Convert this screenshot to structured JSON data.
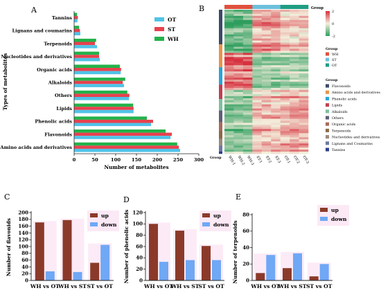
{
  "colors": {
    "OT": "#4fc3e8",
    "ST": "#e8414e",
    "WH": "#22b24a",
    "up": "#8b3a2a",
    "down": "#6fa8f5",
    "hm_low": "#2e9e5e",
    "hm_mid": "#f4eedc",
    "hm_high": "#d62f3d"
  },
  "chart_data": [
    {
      "panel": "A",
      "type": "bar",
      "orientation": "horizontal",
      "categories": [
        "Tannins",
        "Lignans and coumarins",
        "Terpenoids",
        "Nucleotides and derivatives",
        "Organic acids",
        "Alkaloids",
        "Others",
        "Lipids",
        "Phenolic acids",
        "Flavonoids",
        "Amino acids and derivatives"
      ],
      "series": [
        {
          "name": "OT",
          "values": [
            8,
            15,
            55,
            62,
            112,
            120,
            132,
            143,
            185,
            232,
            255
          ]
        },
        {
          "name": "ST",
          "values": [
            9,
            14,
            50,
            60,
            113,
            117,
            133,
            143,
            190,
            235,
            252
          ]
        },
        {
          "name": "WH",
          "values": [
            7,
            12,
            53,
            60,
            110,
            123,
            128,
            142,
            175,
            220,
            248
          ]
        }
      ],
      "xlabel": "Number of metabolites",
      "ylabel": "Types of metabolites",
      "xlim": [
        0,
        300
      ],
      "xticks": [
        0,
        50,
        100,
        150,
        200,
        250,
        300
      ],
      "legend": "right"
    },
    {
      "panel": "B",
      "type": "heatmap",
      "columns": [
        "WH-1",
        "WH-2",
        "WH-3",
        "ST-1",
        "ST-2",
        "ST-3",
        "OT-1",
        "OT-2",
        "OT-3"
      ],
      "group_title": "Group",
      "colorbar_ticks": [
        "2",
        "0",
        "-2"
      ],
      "group_legend": [
        {
          "name": "WH",
          "color": "#e0503d"
        },
        {
          "name": "ST",
          "color": "#6dc0dc"
        },
        {
          "name": "OT",
          "color": "#1e9e83"
        }
      ],
      "class_title": "Group",
      "class_legend": [
        {
          "name": "Flavonoids",
          "color": "#3b4a66"
        },
        {
          "name": "Amino acids and derivatives",
          "color": "#e8944a"
        },
        {
          "name": "Phenolic acids",
          "color": "#27a6d8"
        },
        {
          "name": "Lipids",
          "color": "#c2404e"
        },
        {
          "name": "Alkaloids",
          "color": "#7fbfa0"
        },
        {
          "name": "Others",
          "color": "#5f5f78"
        },
        {
          "name": "Organic acids",
          "color": "#a86a5a"
        },
        {
          "name": "Terpenoids",
          "color": "#8c6a48"
        },
        {
          "name": "Nucleotides and derivatives",
          "color": "#9b8a7a"
        },
        {
          "name": "Lignans and Coumarins",
          "color": "#6e7aa0"
        },
        {
          "name": "Tannins",
          "color": "#2c3e8c"
        }
      ]
    },
    {
      "panel": "C",
      "type": "bar",
      "categories": [
        "WH vs OT",
        "WH vs ST",
        "ST vs OT"
      ],
      "series": [
        {
          "name": "up",
          "values": [
            171,
            178,
            52
          ]
        },
        {
          "name": "down",
          "values": [
            27,
            25,
            105
          ]
        }
      ],
      "ylabel": "Number of flavonids",
      "ylim": [
        0,
        200
      ],
      "yticks": [
        0,
        20,
        40,
        60,
        80,
        100,
        120,
        140,
        160,
        180,
        200
      ],
      "legend": "top-right"
    },
    {
      "panel": "D",
      "type": "bar",
      "categories": [
        "WH vs OT",
        "WH vs ST",
        "ST vs OT"
      ],
      "series": [
        {
          "name": "up",
          "values": [
            100,
            88,
            61
          ]
        },
        {
          "name": "down",
          "values": [
            33,
            36,
            36
          ]
        }
      ],
      "ylabel": "Number of phenolic acids",
      "ylim": [
        0,
        120
      ],
      "yticks": [
        0,
        20,
        40,
        60,
        80,
        100,
        120
      ],
      "legend": "top-right"
    },
    {
      "panel": "E",
      "type": "bar",
      "categories": [
        "WH vs OT",
        "WH vs ST",
        "ST vs OT"
      ],
      "series": [
        {
          "name": "up",
          "values": [
            9,
            15,
            5
          ]
        },
        {
          "name": "down",
          "values": [
            31,
            33,
            20
          ]
        }
      ],
      "ylabel": "Number of terpenoids",
      "ylim": [
        0,
        80
      ],
      "yticks": [
        0,
        20,
        40,
        60,
        80
      ],
      "legend": "top-right"
    }
  ]
}
